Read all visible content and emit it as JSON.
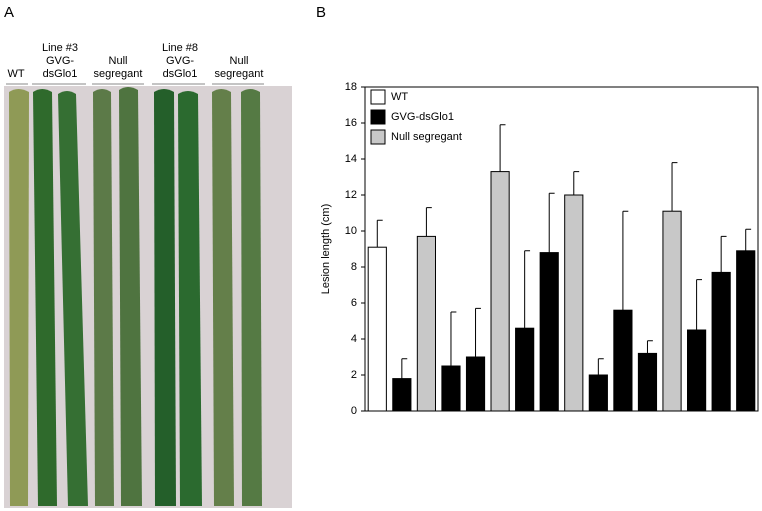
{
  "panel_labels": [
    "A",
    "B"
  ],
  "photo_labels": [
    [
      "WT"
    ],
    [
      "Line #3",
      "GVG-",
      "dsGlo1"
    ],
    [
      "Null",
      "segregant"
    ],
    [
      "Line #8",
      "GVG-",
      "dsGlo1"
    ],
    [
      "Null",
      "segregant"
    ]
  ],
  "chart_data": {
    "type": "bar",
    "ylabel": "Lesion length (cm)",
    "categories": [
      null,
      null,
      null,
      null,
      null,
      null,
      null,
      null,
      null,
      null,
      null,
      null,
      null,
      null,
      null,
      null
    ],
    "series": [
      {
        "name": "WT",
        "color": "#ffffff",
        "values": [
          9.1,
          null,
          null,
          null,
          null,
          null,
          null,
          null,
          null,
          null,
          null,
          null,
          null,
          null,
          null,
          null
        ],
        "errors": [
          1.5,
          null,
          null,
          null,
          null,
          null,
          null,
          null,
          null,
          null,
          null,
          null,
          null,
          null,
          null,
          null
        ]
      },
      {
        "name": "GVG-dsGlo1",
        "color": "#000000",
        "values": [
          null,
          1.8,
          null,
          2.5,
          3.0,
          null,
          4.6,
          8.8,
          null,
          2.0,
          5.6,
          3.2,
          null,
          4.5,
          7.7,
          8.9
        ],
        "errors": [
          null,
          1.1,
          null,
          3.0,
          2.7,
          null,
          4.3,
          3.3,
          null,
          0.9,
          5.5,
          0.7,
          null,
          2.8,
          2.0,
          1.2
        ]
      },
      {
        "name": "Null segregant",
        "color": "#c8c8c8",
        "values": [
          null,
          null,
          9.7,
          null,
          null,
          13.3,
          null,
          null,
          12.0,
          null,
          null,
          null,
          11.1,
          null,
          null,
          null
        ],
        "errors": [
          null,
          null,
          1.6,
          null,
          null,
          2.6,
          null,
          null,
          1.3,
          null,
          null,
          null,
          2.7,
          null,
          null,
          null
        ]
      }
    ],
    "ylim": [
      0,
      18
    ],
    "yticks": [
      0,
      2,
      4,
      6,
      8,
      10,
      12,
      14,
      16,
      18
    ],
    "legend": "upper left"
  }
}
